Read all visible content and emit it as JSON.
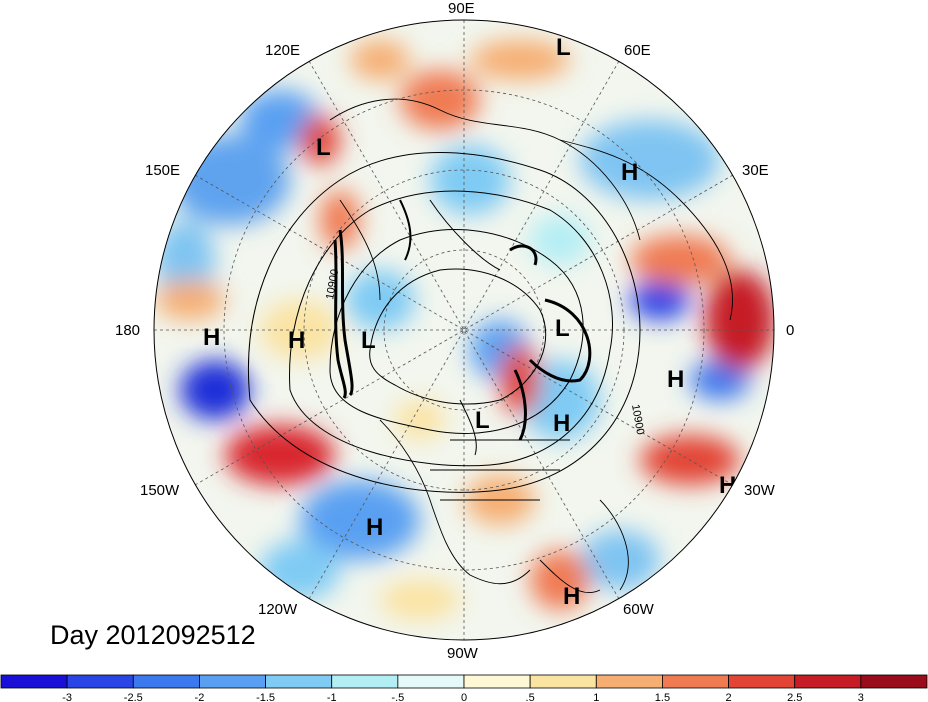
{
  "title": "Day 2012092512",
  "longitude_labels": {
    "e90": "90E",
    "e60": "60E",
    "e30": "30E",
    "zero": "0",
    "w30": "30W",
    "w60": "60W",
    "w90": "90W",
    "w120": "120W",
    "w150": "150W",
    "d180": "180",
    "e150": "150E",
    "e120": "120E"
  },
  "pressure_centers": [
    {
      "name": "L",
      "lon": "near-60E"
    },
    {
      "name": "L",
      "lon": "near-120E"
    },
    {
      "name": "H",
      "lon": "near-30E"
    },
    {
      "name": "H",
      "lon": "180-west"
    },
    {
      "name": "H",
      "lon": "180-east"
    },
    {
      "name": "L",
      "lon": "pole-west"
    },
    {
      "name": "L",
      "lon": "pole-east"
    },
    {
      "name": "H",
      "lon": "0-south"
    },
    {
      "name": "L",
      "lon": "north-america"
    },
    {
      "name": "H",
      "lon": "atlantic"
    },
    {
      "name": "H",
      "lon": "30W"
    },
    {
      "name": "H",
      "lon": "pacific"
    },
    {
      "name": "H",
      "lon": "caribbean"
    }
  ],
  "contour_labels": [
    "10900",
    "10900"
  ],
  "colorbar": {
    "labels": [
      "-3",
      "-2.5",
      "-2",
      "-1.5",
      "-1",
      "-.5",
      "0",
      ".5",
      "1",
      "1.5",
      "2",
      "2.5",
      "3"
    ],
    "colors": [
      "#1a0fd6",
      "#2a45e6",
      "#3c78ee",
      "#5aa0f2",
      "#7fcbf4",
      "#b3eef5",
      "#e4f9f8",
      "#fff8d6",
      "#fbe3a2",
      "#f6ae72",
      "#f07a52",
      "#e24436",
      "#c61c26",
      "#9a0c1a"
    ]
  }
}
